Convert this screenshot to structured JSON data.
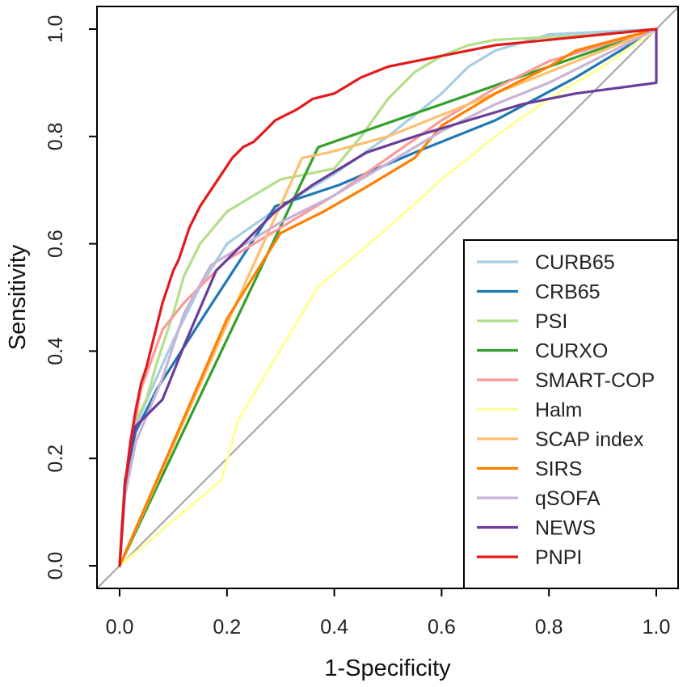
{
  "chart_data": {
    "type": "line",
    "title": "",
    "xlabel": "1-Specificity",
    "ylabel": "Sensitivity",
    "xlim": [
      0,
      1
    ],
    "ylim": [
      0,
      1
    ],
    "xticks": [
      0,
      0.2,
      0.4,
      0.6,
      0.8,
      1
    ],
    "xtick_labels": [
      "0.0",
      "0.2",
      "0.4",
      "0.6",
      "0.8",
      "1.0"
    ],
    "yticks": [
      0,
      0.2,
      0.4,
      0.6,
      0.8,
      1
    ],
    "ytick_labels": [
      "0.0",
      "0.2",
      "0.4",
      "0.6",
      "0.8",
      "1.0"
    ],
    "grid": false,
    "legend_position": "bottom-right",
    "reference_line": {
      "name": "chance",
      "x": [
        0,
        1
      ],
      "y": [
        0,
        1
      ],
      "color": "#a0a0a0"
    },
    "series": [
      {
        "name": "CURB65",
        "color": "#a6cee3",
        "x": [
          0,
          0.01,
          0.03,
          0.06,
          0.1,
          0.15,
          0.2,
          0.3,
          0.4,
          0.5,
          0.6,
          0.65,
          0.7,
          0.8,
          1
        ],
        "y": [
          0,
          0.15,
          0.26,
          0.33,
          0.42,
          0.52,
          0.6,
          0.67,
          0.73,
          0.8,
          0.88,
          0.93,
          0.96,
          0.99,
          1
        ]
      },
      {
        "name": "CRB65",
        "color": "#1f78b4",
        "x": [
          0,
          0.01,
          0.03,
          0.07,
          0.16,
          0.29,
          0.41,
          0.55,
          0.7,
          0.85,
          1
        ],
        "y": [
          0,
          0.16,
          0.25,
          0.33,
          0.47,
          0.67,
          0.71,
          0.77,
          0.83,
          0.91,
          1
        ]
      },
      {
        "name": "PSI",
        "color": "#b2df8a",
        "x": [
          0,
          0.005,
          0.01,
          0.02,
          0.03,
          0.05,
          0.07,
          0.1,
          0.12,
          0.15,
          0.2,
          0.25,
          0.3,
          0.35,
          0.4,
          0.45,
          0.5,
          0.55,
          0.6,
          0.65,
          0.7,
          0.8,
          0.9,
          1
        ],
        "y": [
          0,
          0.08,
          0.15,
          0.22,
          0.27,
          0.31,
          0.38,
          0.47,
          0.54,
          0.6,
          0.66,
          0.69,
          0.72,
          0.73,
          0.74,
          0.8,
          0.87,
          0.92,
          0.95,
          0.97,
          0.98,
          0.985,
          0.99,
          1
        ]
      },
      {
        "name": "CURXO",
        "color": "#33a02c",
        "x": [
          0,
          0.37,
          0.6,
          0.8,
          1
        ],
        "y": [
          0,
          0.78,
          0.86,
          0.93,
          1
        ]
      },
      {
        "name": "SMART-COP",
        "color": "#fb9a99",
        "x": [
          0,
          0.01,
          0.02,
          0.04,
          0.08,
          0.12,
          0.2,
          0.3,
          0.4,
          0.5,
          0.6,
          0.7,
          0.8,
          0.9,
          1
        ],
        "y": [
          0,
          0.14,
          0.22,
          0.33,
          0.44,
          0.49,
          0.57,
          0.63,
          0.69,
          0.76,
          0.83,
          0.89,
          0.94,
          0.97,
          1
        ]
      },
      {
        "name": "Halm",
        "color": "#ffff99",
        "x": [
          0,
          0.19,
          0.22,
          0.37,
          0.5,
          0.6,
          0.7,
          0.8,
          0.9,
          1
        ],
        "y": [
          0,
          0.16,
          0.27,
          0.52,
          0.63,
          0.72,
          0.8,
          0.87,
          0.93,
          1
        ]
      },
      {
        "name": "SCAP index",
        "color": "#fdbf6f",
        "x": [
          0,
          0.24,
          0.34,
          0.39,
          0.5,
          0.6,
          0.7,
          0.8,
          0.9,
          1
        ],
        "y": [
          0,
          0.54,
          0.76,
          0.77,
          0.8,
          0.84,
          0.88,
          0.92,
          0.96,
          1
        ]
      },
      {
        "name": "SIRS",
        "color": "#ff7f00",
        "x": [
          0,
          0.2,
          0.3,
          0.38,
          0.45,
          0.55,
          0.6,
          0.7,
          0.8,
          0.85,
          1
        ],
        "y": [
          0,
          0.46,
          0.62,
          0.66,
          0.7,
          0.76,
          0.82,
          0.88,
          0.93,
          0.96,
          1
        ]
      },
      {
        "name": "qSOFA",
        "color": "#cab2d6",
        "x": [
          0,
          0.01,
          0.03,
          0.08,
          0.12,
          0.17,
          0.3,
          0.4,
          0.5,
          0.6,
          0.7,
          0.8,
          0.9,
          1
        ],
        "y": [
          0,
          0.13,
          0.23,
          0.35,
          0.47,
          0.56,
          0.64,
          0.69,
          0.75,
          0.81,
          0.86,
          0.9,
          0.95,
          1
        ]
      },
      {
        "name": "NEWS",
        "color": "#6a3d9a",
        "x": [
          0,
          0.005,
          0.01,
          0.02,
          0.03,
          0.05,
          0.08,
          0.12,
          0.18,
          0.29,
          0.36,
          0.46,
          0.55,
          0.65,
          0.75,
          0.85,
          1,
          1,
          1
        ],
        "y": [
          0,
          0.07,
          0.15,
          0.21,
          0.26,
          0.28,
          0.31,
          0.41,
          0.55,
          0.66,
          0.71,
          0.77,
          0.8,
          0.83,
          0.86,
          0.88,
          0.9,
          1,
          1
        ]
      },
      {
        "name": "PNPI",
        "color": "#e31a1c",
        "x": [
          0,
          0.005,
          0.01,
          0.02,
          0.03,
          0.04,
          0.05,
          0.06,
          0.07,
          0.08,
          0.09,
          0.1,
          0.11,
          0.12,
          0.13,
          0.14,
          0.15,
          0.17,
          0.19,
          0.21,
          0.23,
          0.25,
          0.27,
          0.29,
          0.31,
          0.33,
          0.36,
          0.4,
          0.45,
          0.5,
          0.55,
          0.6,
          0.65,
          0.7,
          0.8,
          0.9,
          1
        ],
        "y": [
          0,
          0.08,
          0.15,
          0.23,
          0.29,
          0.34,
          0.37,
          0.41,
          0.45,
          0.49,
          0.52,
          0.55,
          0.57,
          0.6,
          0.63,
          0.65,
          0.67,
          0.7,
          0.73,
          0.76,
          0.78,
          0.79,
          0.81,
          0.83,
          0.84,
          0.85,
          0.87,
          0.88,
          0.91,
          0.93,
          0.94,
          0.95,
          0.96,
          0.97,
          0.98,
          0.99,
          1
        ]
      }
    ]
  }
}
